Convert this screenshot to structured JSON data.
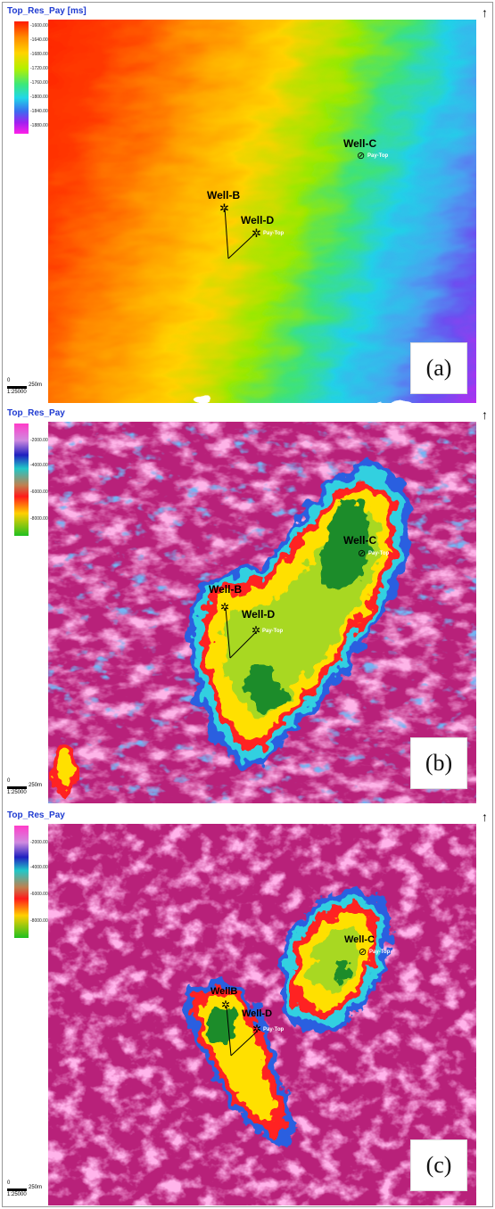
{
  "figure_panels": [
    {
      "id": "a",
      "title": "Top_Res_Pay [ms]",
      "label": "(a)",
      "scale_zero": "0",
      "scale_distance": "250m",
      "scale_ratio": "1:25000",
      "legend_ticks": [
        "-1600.00",
        "-1640.00",
        "-1680.00",
        "-1720.00",
        "-1760.00",
        "-1800.00",
        "-1840.00",
        "-1880.00"
      ],
      "legend_colors": [
        "#ff1a00",
        "#ff8a00",
        "#ffd400",
        "#b4f000",
        "#3ce87a",
        "#20d8e8",
        "#3b6cf0",
        "#a020f0",
        "#ff20e8"
      ],
      "wells": [
        {
          "name": "Well-B",
          "marker": ""
        },
        {
          "name": "Well-D",
          "marker": "Pay-Top"
        },
        {
          "name": "Well-C",
          "marker": "Pay-Top"
        }
      ]
    },
    {
      "id": "b",
      "title": "Top_Res_Pay",
      "label": "(b)",
      "scale_zero": "0",
      "scale_distance": "250m",
      "scale_ratio": "1:25000",
      "legend_ticks": [
        "-2000.00",
        "-4000.00",
        "-6000.00",
        "-8000.00"
      ],
      "legend_colors": [
        "#ff3cc8",
        "#a0d0ff",
        "#2020c0",
        "#20c8c8",
        "#c08050",
        "#ff1a1a",
        "#ffd000",
        "#20c020"
      ],
      "wells": [
        {
          "name": "Well-B",
          "marker": ""
        },
        {
          "name": "Well-D",
          "marker": "Pay-Top"
        },
        {
          "name": "Well-C",
          "marker": "Pay-Top"
        }
      ]
    },
    {
      "id": "c",
      "title": "Top_Res_Pay",
      "label": "(c)",
      "scale_zero": "0",
      "scale_distance": "250m",
      "scale_ratio": "1:25000",
      "legend_ticks": [
        "-2000.00",
        "-4000.00",
        "-6000.00",
        "-8000.00"
      ],
      "legend_colors": [
        "#ff3cc8",
        "#a0d0ff",
        "#2020c0",
        "#20c8c8",
        "#c08050",
        "#ff1a1a",
        "#ffd000",
        "#20c020"
      ],
      "wells": [
        {
          "name": "WellB",
          "marker": ""
        },
        {
          "name": "Well-D",
          "marker": "Pay-Top"
        },
        {
          "name": "Well-C",
          "marker": "Pay-Top"
        }
      ]
    }
  ],
  "north_arrow": "↑",
  "colors": {
    "title_blue": "#1f3bd1",
    "background_magenta": "#c0247e",
    "light_pink": "#ff6ec8",
    "anomaly_green": "#1e8c2c",
    "anomaly_yellow": "#ffe000",
    "anomaly_red": "#ff2020",
    "halo_blue": "#2b5ce0",
    "halo_cyan": "#3cd0e0"
  }
}
